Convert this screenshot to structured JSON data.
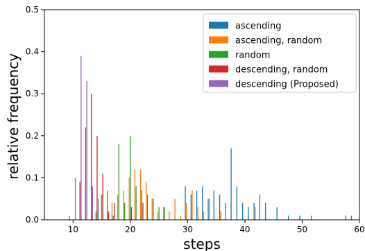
{
  "chart_data": {
    "type": "bar",
    "xlabel": "steps",
    "ylabel": "relative frequency",
    "xlim": [
      5,
      60
    ],
    "ylim": [
      0,
      0.5
    ],
    "xticks": [
      "10",
      "20",
      "30",
      "40",
      "50",
      "60"
    ],
    "yticks": [
      "0.0",
      "0.1",
      "0.2",
      "0.3",
      "0.4",
      "0.5"
    ],
    "legend_position": "top-right",
    "series": [
      {
        "name": "ascending",
        "color": "#1f77b4",
        "x": [
          30,
          31,
          32,
          33,
          34,
          35,
          36,
          37,
          38,
          39,
          40,
          41,
          42,
          43,
          44,
          46,
          48,
          50,
          52,
          58,
          59
        ],
        "values": [
          0.08,
          0.06,
          0.07,
          0.08,
          0.05,
          0.07,
          0.06,
          0.04,
          0.17,
          0.08,
          0.04,
          0.03,
          0.04,
          0.06,
          0.04,
          0.03,
          0.01,
          0.01,
          0.01,
          0.01,
          0.01
        ]
      },
      {
        "name": "ascending, random",
        "color": "#ff7f0e",
        "x": [
          17,
          18,
          19,
          20,
          21,
          22,
          23,
          24,
          25,
          26,
          27,
          28,
          29,
          30,
          31,
          32,
          33,
          34,
          36,
          42
        ],
        "values": [
          0.04,
          0.06,
          0.07,
          0.1,
          0.12,
          0.12,
          0.09,
          0.05,
          0.02,
          0.03,
          0.02,
          0.05,
          0.01,
          0.04,
          0.07,
          0.03,
          0.02,
          0.05,
          0.02,
          0.03
        ]
      },
      {
        "name": "random",
        "color": "#2ca02c",
        "x": [
          14,
          15,
          16,
          17,
          18,
          19,
          20,
          21,
          22,
          23,
          24,
          25,
          26
        ],
        "values": [
          0.02,
          0.06,
          0.07,
          0.01,
          0.18,
          0.04,
          0.2,
          0.08,
          0.07,
          0.06,
          0.05,
          0.03,
          0.03
        ]
      },
      {
        "name": "descending, random",
        "color": "#d62728",
        "x": [
          11,
          12,
          13,
          14,
          15,
          16,
          17,
          20,
          22
        ],
        "values": [
          0.09,
          0.22,
          0.3,
          0.2,
          0.11,
          0.02,
          0.04,
          0.03,
          0.04
        ]
      },
      {
        "name": "descending (Proposed)",
        "color": "#9467bd",
        "x": [
          9,
          10,
          11,
          12,
          13,
          14
        ],
        "values": [
          0.01,
          0.1,
          0.39,
          0.33,
          0.08,
          0.05
        ]
      }
    ]
  }
}
